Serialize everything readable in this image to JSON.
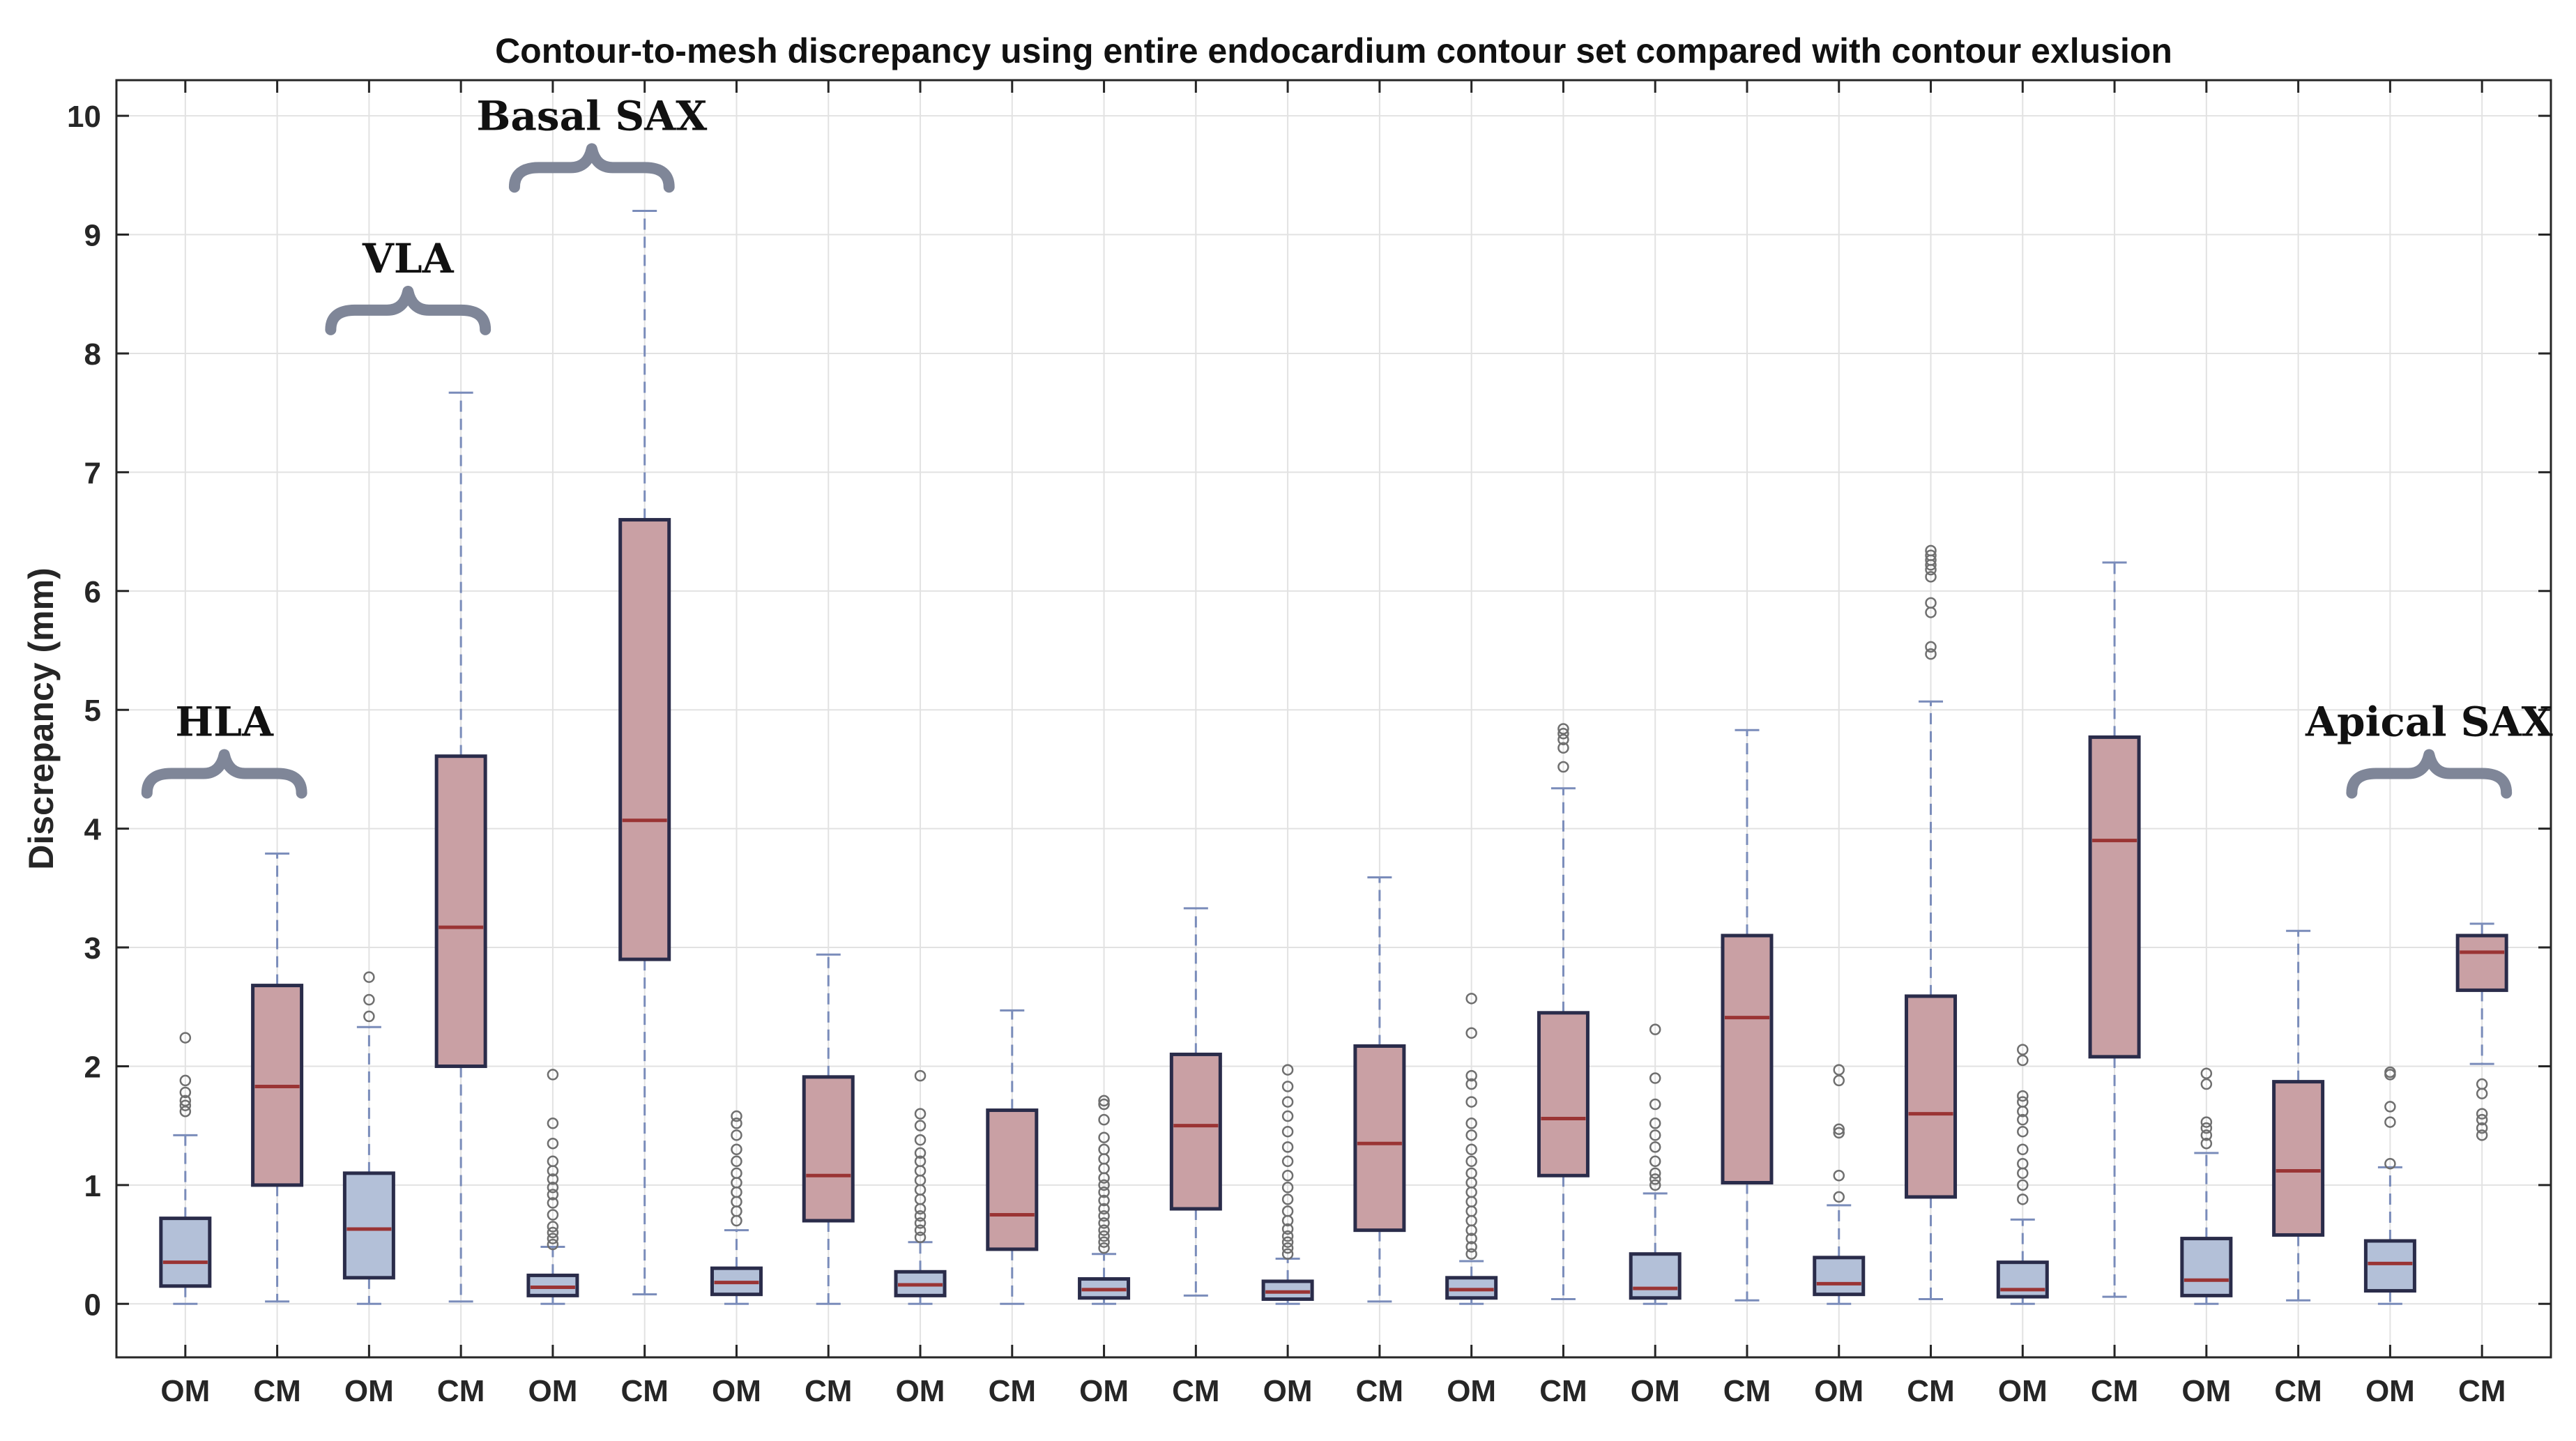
{
  "chart_data": {
    "type": "box",
    "title": "Contour-to-mesh discrepancy using entire endocardium contour set compared with contour exlusion",
    "ylabel": "Discrepancy (mm)",
    "xlabel": "",
    "ylim": [
      -0.45,
      10.3
    ],
    "yticks": [
      0,
      1,
      2,
      3,
      4,
      5,
      6,
      7,
      8,
      9,
      10
    ],
    "grid": true,
    "colors": {
      "OM": "#b3c0d8",
      "CM": "#c9a0a4",
      "median": "#9a3434",
      "edge": "#2a2c4a",
      "whisker": "#7a8cba",
      "bracket": "#7f8698"
    },
    "groups": [
      {
        "label": "HLA",
        "from_box": 0,
        "to_box": 1
      },
      {
        "label": "VLA",
        "from_box": 2,
        "to_box": 3
      },
      {
        "label": "Basal SAX",
        "from_box": 4,
        "to_box": 5
      },
      {
        "label": "Apical SAX",
        "from_box": 24,
        "to_box": 25
      }
    ],
    "boxes": [
      {
        "label": "OM",
        "q1": 0.15,
        "median": 0.35,
        "q3": 0.72,
        "whisker_low": 0.0,
        "whisker_high": 1.42,
        "outliers": [
          1.62,
          1.67,
          1.71,
          1.78,
          1.88,
          2.24
        ]
      },
      {
        "label": "CM",
        "q1": 1.0,
        "median": 1.83,
        "q3": 2.68,
        "whisker_low": 0.02,
        "whisker_high": 3.79,
        "outliers": []
      },
      {
        "label": "OM",
        "q1": 0.22,
        "median": 0.63,
        "q3": 1.1,
        "whisker_low": 0.0,
        "whisker_high": 2.33,
        "outliers": [
          2.42,
          2.56,
          2.75
        ]
      },
      {
        "label": "CM",
        "q1": 2.0,
        "median": 3.17,
        "q3": 4.61,
        "whisker_low": 0.02,
        "whisker_high": 7.67,
        "outliers": []
      },
      {
        "label": "OM",
        "q1": 0.07,
        "median": 0.14,
        "q3": 0.24,
        "whisker_low": 0.0,
        "whisker_high": 0.48,
        "outliers": [
          0.5,
          0.55,
          0.6,
          0.65,
          0.75,
          0.85,
          0.92,
          0.98,
          1.05,
          1.12,
          1.2,
          1.35,
          1.52,
          1.93
        ]
      },
      {
        "label": "CM",
        "q1": 2.9,
        "median": 4.07,
        "q3": 6.6,
        "whisker_low": 0.08,
        "whisker_high": 9.2,
        "outliers": []
      },
      {
        "label": "OM",
        "q1": 0.08,
        "median": 0.18,
        "q3": 0.3,
        "whisker_low": 0.0,
        "whisker_high": 0.62,
        "outliers": [
          0.7,
          0.78,
          0.86,
          0.94,
          1.02,
          1.1,
          1.2,
          1.3,
          1.42,
          1.52,
          1.58
        ]
      },
      {
        "label": "CM",
        "q1": 0.7,
        "median": 1.08,
        "q3": 1.91,
        "whisker_low": 0.0,
        "whisker_high": 2.94,
        "outliers": []
      },
      {
        "label": "OM",
        "q1": 0.07,
        "median": 0.16,
        "q3": 0.27,
        "whisker_low": 0.0,
        "whisker_high": 0.52,
        "outliers": [
          0.56,
          0.62,
          0.68,
          0.74,
          0.8,
          0.88,
          0.96,
          1.04,
          1.12,
          1.2,
          1.27,
          1.38,
          1.5,
          1.6,
          1.92
        ]
      },
      {
        "label": "CM",
        "q1": 0.46,
        "median": 0.75,
        "q3": 1.63,
        "whisker_low": 0.0,
        "whisker_high": 2.47,
        "outliers": []
      },
      {
        "label": "OM",
        "q1": 0.05,
        "median": 0.12,
        "q3": 0.21,
        "whisker_low": 0.0,
        "whisker_high": 0.42,
        "outliers": [
          0.47,
          0.52,
          0.57,
          0.62,
          0.68,
          0.74,
          0.8,
          0.87,
          0.94,
          1.0,
          1.06,
          1.14,
          1.22,
          1.3,
          1.4,
          1.55,
          1.68,
          1.71
        ]
      },
      {
        "label": "CM",
        "q1": 0.8,
        "median": 1.5,
        "q3": 2.1,
        "whisker_low": 0.07,
        "whisker_high": 3.33,
        "outliers": []
      },
      {
        "label": "OM",
        "q1": 0.04,
        "median": 0.1,
        "q3": 0.19,
        "whisker_low": 0.0,
        "whisker_high": 0.38,
        "outliers": [
          0.42,
          0.47,
          0.52,
          0.57,
          0.63,
          0.7,
          0.78,
          0.88,
          0.98,
          1.08,
          1.2,
          1.32,
          1.45,
          1.58,
          1.7,
          1.83,
          1.97
        ]
      },
      {
        "label": "CM",
        "q1": 0.62,
        "median": 1.35,
        "q3": 2.17,
        "whisker_low": 0.02,
        "whisker_high": 3.59,
        "outliers": []
      },
      {
        "label": "OM",
        "q1": 0.05,
        "median": 0.12,
        "q3": 0.22,
        "whisker_low": 0.0,
        "whisker_high": 0.36,
        "outliers": [
          0.42,
          0.48,
          0.55,
          0.62,
          0.7,
          0.78,
          0.86,
          0.94,
          1.02,
          1.1,
          1.2,
          1.3,
          1.42,
          1.52,
          1.7,
          1.85,
          1.92,
          2.28,
          2.57
        ]
      },
      {
        "label": "CM",
        "q1": 1.08,
        "median": 1.56,
        "q3": 2.45,
        "whisker_low": 0.04,
        "whisker_high": 4.34,
        "outliers": [
          4.52,
          4.68,
          4.75,
          4.8,
          4.84
        ]
      },
      {
        "label": "OM",
        "q1": 0.05,
        "median": 0.13,
        "q3": 0.42,
        "whisker_low": 0.0,
        "whisker_high": 0.93,
        "outliers": [
          1.0,
          1.05,
          1.1,
          1.2,
          1.32,
          1.42,
          1.52,
          1.68,
          1.9,
          2.31
        ]
      },
      {
        "label": "CM",
        "q1": 1.02,
        "median": 2.41,
        "q3": 3.1,
        "whisker_low": 0.03,
        "whisker_high": 4.83,
        "outliers": []
      },
      {
        "label": "OM",
        "q1": 0.08,
        "median": 0.17,
        "q3": 0.39,
        "whisker_low": 0.0,
        "whisker_high": 0.83,
        "outliers": [
          0.9,
          1.08,
          1.44,
          1.47,
          1.88,
          1.97
        ]
      },
      {
        "label": "CM",
        "q1": 0.9,
        "median": 1.6,
        "q3": 2.59,
        "whisker_low": 0.04,
        "whisker_high": 5.07,
        "outliers": [
          5.47,
          5.53,
          5.82,
          5.9,
          6.12,
          6.18,
          6.22,
          6.26,
          6.3,
          6.34
        ]
      },
      {
        "label": "OM",
        "q1": 0.06,
        "median": 0.12,
        "q3": 0.35,
        "whisker_low": 0.0,
        "whisker_high": 0.71,
        "outliers": [
          0.88,
          1.0,
          1.1,
          1.18,
          1.3,
          1.45,
          1.55,
          1.62,
          1.7,
          1.75,
          2.05,
          2.14
        ]
      },
      {
        "label": "CM",
        "q1": 2.08,
        "median": 3.9,
        "q3": 4.77,
        "whisker_low": 0.06,
        "whisker_high": 6.24,
        "outliers": []
      },
      {
        "label": "OM",
        "q1": 0.07,
        "median": 0.2,
        "q3": 0.55,
        "whisker_low": 0.0,
        "whisker_high": 1.27,
        "outliers": [
          1.35,
          1.42,
          1.48,
          1.53,
          1.85,
          1.94
        ]
      },
      {
        "label": "CM",
        "q1": 0.58,
        "median": 1.12,
        "q3": 1.87,
        "whisker_low": 0.03,
        "whisker_high": 3.14,
        "outliers": []
      },
      {
        "label": "OM",
        "q1": 0.11,
        "median": 0.34,
        "q3": 0.53,
        "whisker_low": 0.0,
        "whisker_high": 1.15,
        "outliers": [
          1.18,
          1.53,
          1.66,
          1.93,
          1.95
        ]
      },
      {
        "label": "CM",
        "q1": 2.64,
        "median": 2.96,
        "q3": 3.1,
        "whisker_low": 2.02,
        "whisker_high": 3.2,
        "outliers": [
          1.42,
          1.48,
          1.55,
          1.6,
          1.77,
          1.85
        ]
      }
    ]
  }
}
